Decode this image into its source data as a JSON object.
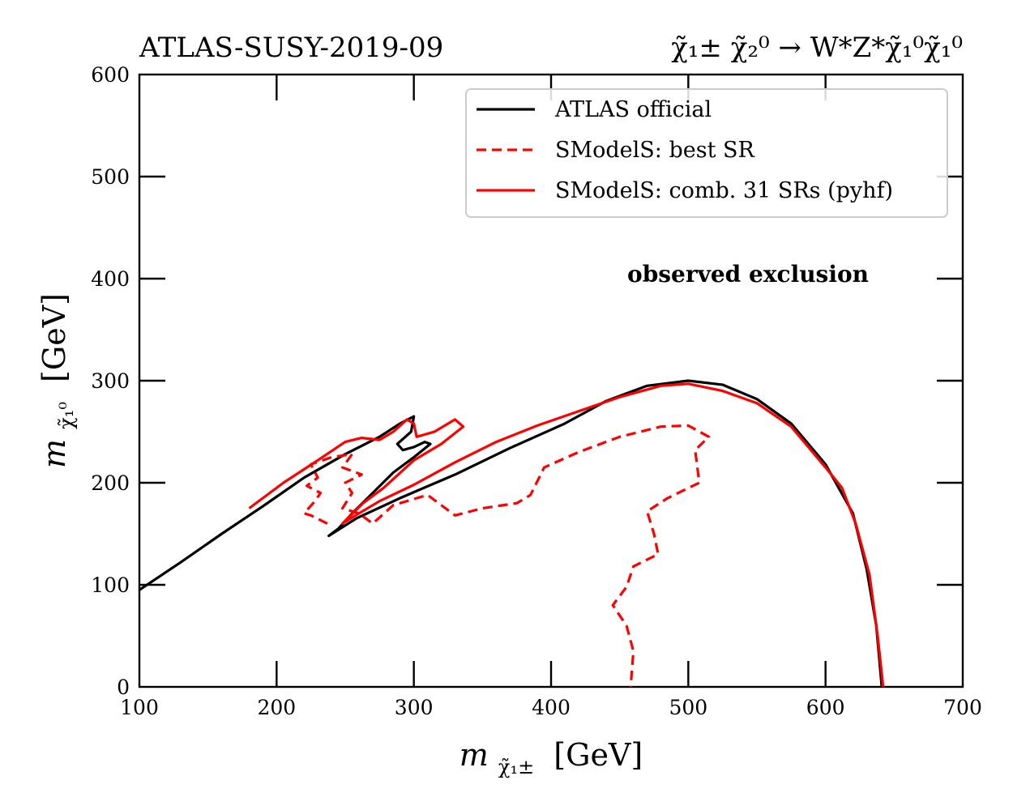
{
  "chart_data": {
    "type": "line",
    "title_left": "ATLAS-SUSY-2019-09",
    "title_right": {
      "base": "χ̃",
      "text": "χ̃₁± χ̃₂⁰ → W*Z*χ̃₁⁰χ̃₁⁰"
    },
    "xlabel": {
      "main": "m",
      "sub": "χ̃₁±",
      "unit": "[GeV]"
    },
    "ylabel": {
      "main": "m",
      "sub": "χ̃₁⁰",
      "unit": "[GeV]"
    },
    "xlim": [
      100,
      700
    ],
    "ylim": [
      0,
      600
    ],
    "xticks": [
      100,
      200,
      300,
      400,
      500,
      600,
      700
    ],
    "yticks": [
      0,
      100,
      200,
      300,
      400,
      500,
      600
    ],
    "grid": false,
    "legend_position": "top-right",
    "annotation": "observed exclusion",
    "series": [
      {
        "name": "ATLAS official",
        "color": "#000000",
        "style": "solid",
        "points": [
          [
            100,
            95
          ],
          [
            130,
            122
          ],
          [
            160,
            150
          ],
          [
            190,
            177
          ],
          [
            220,
            205
          ],
          [
            250,
            228
          ],
          [
            275,
            245
          ],
          [
            290,
            258
          ],
          [
            300,
            265
          ],
          [
            298,
            250
          ],
          [
            288,
            238
          ],
          [
            292,
            232
          ],
          [
            300,
            235
          ],
          [
            308,
            240
          ],
          [
            312,
            238
          ],
          [
            300,
            225
          ],
          [
            285,
            210
          ],
          [
            270,
            190
          ],
          [
            255,
            170
          ],
          [
            245,
            155
          ],
          [
            238,
            148
          ],
          [
            258,
            165
          ],
          [
            290,
            185
          ],
          [
            330,
            208
          ],
          [
            370,
            234
          ],
          [
            410,
            258
          ],
          [
            440,
            280
          ],
          [
            470,
            295
          ],
          [
            500,
            300
          ],
          [
            525,
            296
          ],
          [
            550,
            282
          ],
          [
            575,
            258
          ],
          [
            600,
            218
          ],
          [
            620,
            170
          ],
          [
            630,
            115
          ],
          [
            637,
            60
          ],
          [
            641,
            0
          ]
        ]
      },
      {
        "name": "SModelS: best SR",
        "color": "#ff0000",
        "style": "dashed",
        "points": [
          [
            237,
            160
          ],
          [
            225,
            168
          ],
          [
            220,
            170
          ],
          [
            228,
            182
          ],
          [
            232,
            190
          ],
          [
            222,
            197
          ],
          [
            230,
            205
          ],
          [
            225,
            218
          ],
          [
            240,
            225
          ],
          [
            255,
            228
          ],
          [
            248,
            215
          ],
          [
            258,
            210
          ],
          [
            262,
            208
          ],
          [
            250,
            200
          ],
          [
            255,
            190
          ],
          [
            248,
            175
          ],
          [
            260,
            170
          ],
          [
            270,
            160
          ],
          [
            285,
            178
          ],
          [
            310,
            188
          ],
          [
            330,
            168
          ],
          [
            350,
            175
          ],
          [
            375,
            180
          ],
          [
            385,
            188
          ],
          [
            395,
            215
          ],
          [
            420,
            230
          ],
          [
            450,
            245
          ],
          [
            480,
            255
          ],
          [
            500,
            256
          ],
          [
            515,
            245
          ],
          [
            505,
            232
          ],
          [
            508,
            200
          ],
          [
            485,
            185
          ],
          [
            470,
            172
          ],
          [
            475,
            150
          ],
          [
            478,
            130
          ],
          [
            460,
            118
          ],
          [
            455,
            98
          ],
          [
            445,
            80
          ],
          [
            455,
            60
          ],
          [
            460,
            35
          ],
          [
            458,
            0
          ]
        ]
      },
      {
        "name": "SModelS: comb. 31 SRs (pyhf)",
        "color": "#ff0000",
        "style": "solid",
        "points": [
          [
            180,
            175
          ],
          [
            205,
            200
          ],
          [
            230,
            222
          ],
          [
            250,
            240
          ],
          [
            262,
            244
          ],
          [
            275,
            242
          ],
          [
            285,
            250
          ],
          [
            295,
            262
          ],
          [
            300,
            258
          ],
          [
            302,
            245
          ],
          [
            315,
            250
          ],
          [
            330,
            262
          ],
          [
            336,
            255
          ],
          [
            320,
            238
          ],
          [
            300,
            222
          ],
          [
            278,
            195
          ],
          [
            263,
            180
          ],
          [
            248,
            160
          ],
          [
            260,
            170
          ],
          [
            275,
            182
          ],
          [
            300,
            198
          ],
          [
            330,
            220
          ],
          [
            360,
            240
          ],
          [
            390,
            256
          ],
          [
            420,
            270
          ],
          [
            450,
            284
          ],
          [
            480,
            295
          ],
          [
            500,
            297
          ],
          [
            525,
            290
          ],
          [
            550,
            278
          ],
          [
            575,
            255
          ],
          [
            600,
            215
          ],
          [
            612,
            195
          ],
          [
            622,
            160
          ],
          [
            632,
            110
          ],
          [
            638,
            50
          ],
          [
            642,
            0
          ]
        ]
      }
    ]
  }
}
